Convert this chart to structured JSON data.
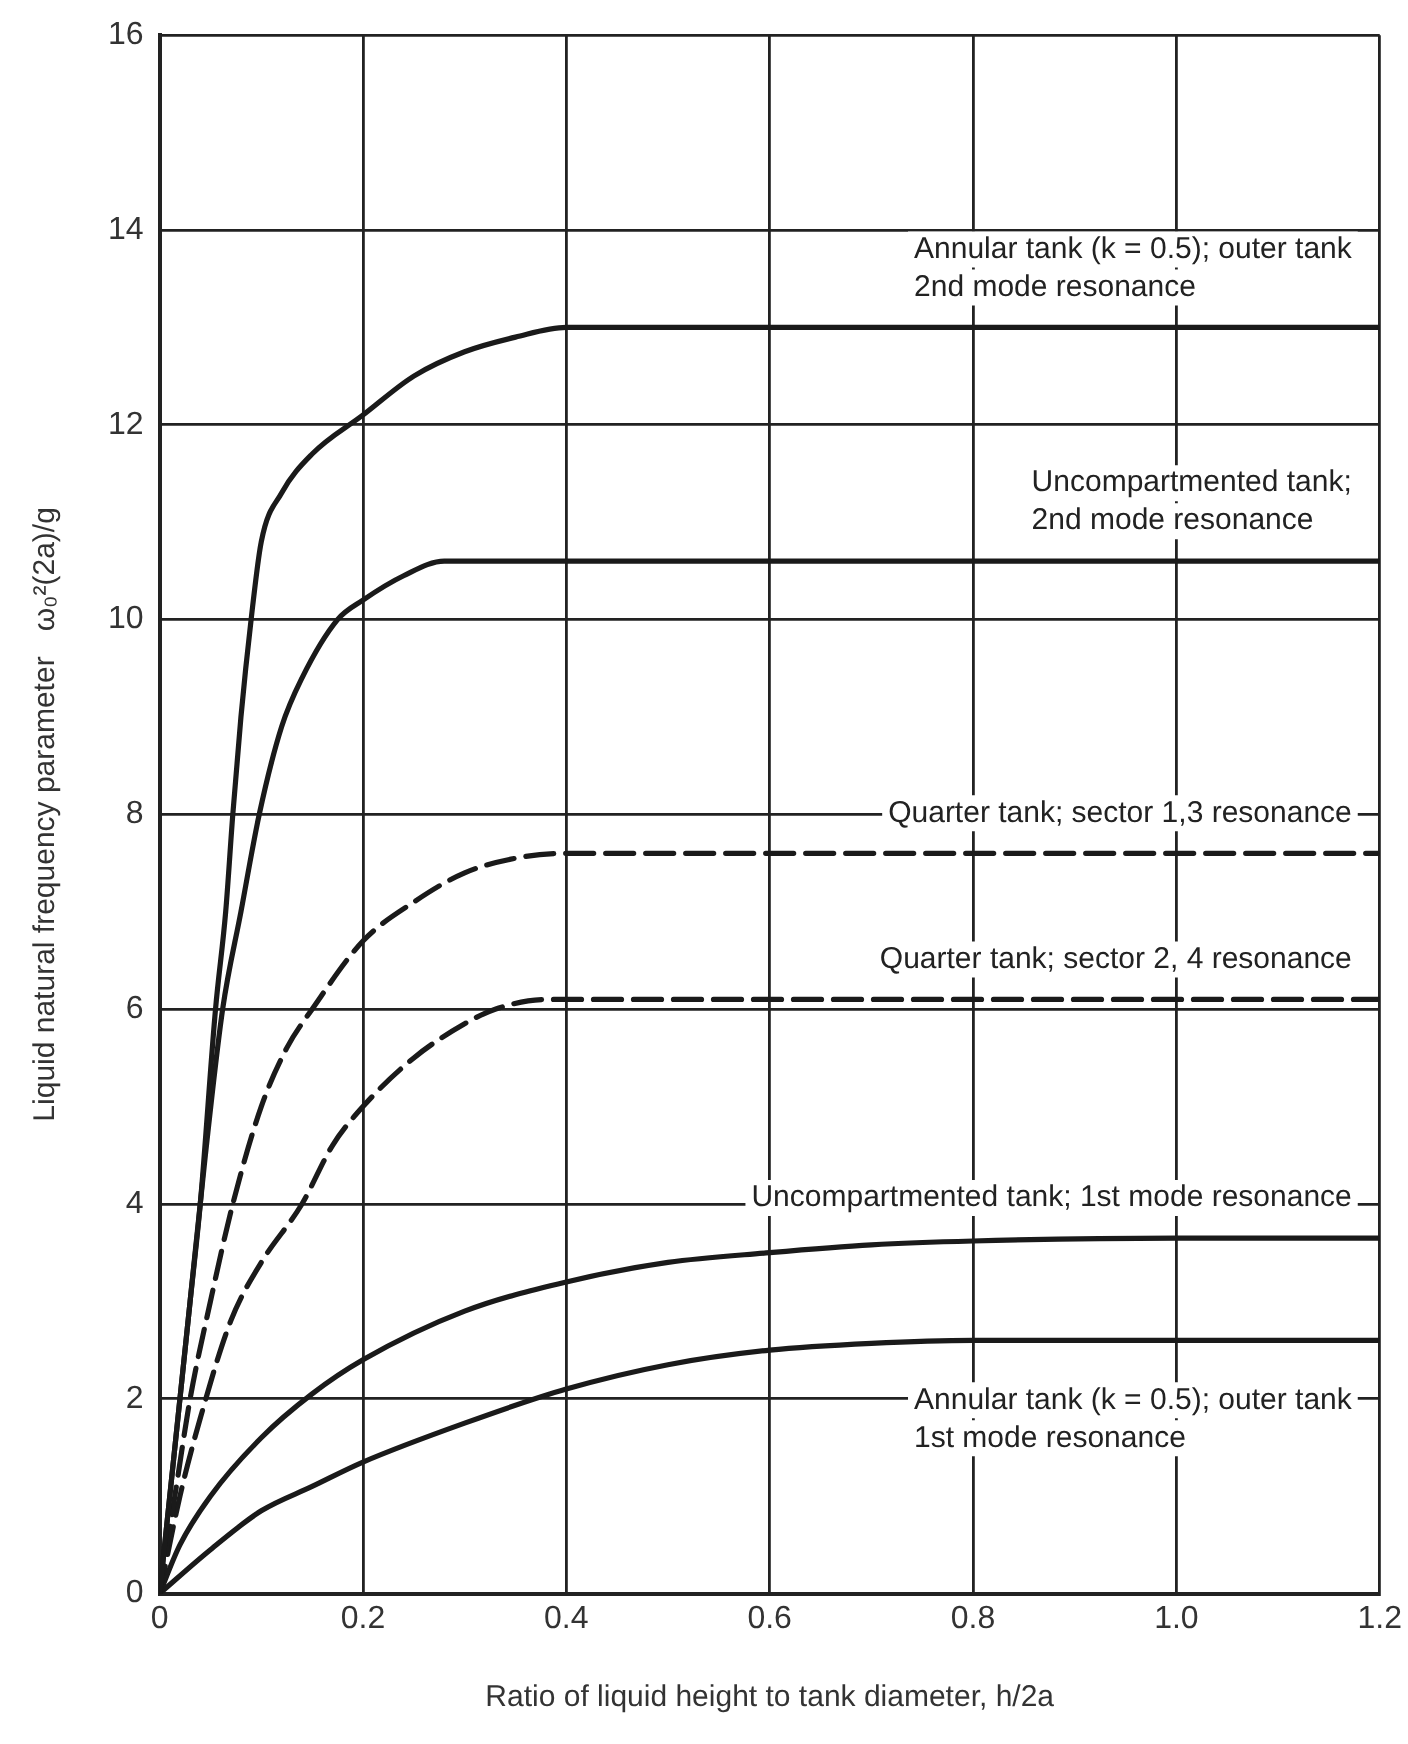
{
  "chart_data": {
    "type": "line",
    "xlabel": "Ratio of liquid height to tank diameter, h/2a",
    "ylabel": "Liquid natural frequency parameter   ω₀²(2a)/g",
    "xlim": [
      0,
      1.2
    ],
    "ylim": [
      0,
      16
    ],
    "xticks": [
      0,
      0.2,
      0.4,
      0.6,
      0.8,
      {
        "value": 1,
        "label": "1.0"
      },
      1.2
    ],
    "yticks": [
      0,
      2,
      4,
      6,
      8,
      10,
      12,
      14,
      16
    ],
    "grid": true,
    "marker": "none",
    "series": [
      {
        "color": "#1a1a1a",
        "line_style": "solid",
        "x": [
          0,
          0.01,
          0.02,
          0.03,
          0.04,
          0.055,
          0.065,
          0.072,
          0.08,
          0.09,
          0.1,
          0.12,
          0.15,
          0.2,
          0.25,
          0.3,
          0.35,
          0.4,
          0.5,
          0.7,
          1.0,
          1.2
        ],
        "values": [
          0,
          1,
          2,
          3,
          4,
          6,
          7,
          8,
          9,
          10,
          10.8,
          11.3,
          11.7,
          12.1,
          12.5,
          12.75,
          12.9,
          13,
          13,
          13,
          13,
          13
        ]
      },
      {
        "color": "#1a1a1a",
        "line_style": "solid",
        "x": [
          0,
          0.015,
          0.03,
          0.045,
          0.062,
          0.08,
          0.098,
          0.12,
          0.14,
          0.175,
          0.2,
          0.24,
          0.28,
          0.4,
          0.7,
          1.0,
          1.2
        ],
        "values": [
          0,
          1.5,
          3,
          4.5,
          6,
          7,
          8,
          8.9,
          9.4,
          10,
          10.2,
          10.45,
          10.6,
          10.6,
          10.6,
          10.6,
          10.6
        ]
      },
      {
        "color": "#1a1a1a",
        "line_style": "dashed",
        "x": [
          0,
          0.015,
          0.03,
          0.05,
          0.072,
          0.1,
          0.125,
          0.15,
          0.2,
          0.25,
          0.3,
          0.35,
          0.4,
          0.6,
          0.8,
          1.0,
          1.2
        ],
        "values": [
          0,
          1,
          2,
          3,
          4,
          5,
          5.6,
          6,
          6.7,
          7.1,
          7.4,
          7.55,
          7.6,
          7.6,
          7.6,
          7.6,
          7.6
        ]
      },
      {
        "color": "#1a1a1a",
        "line_style": "dashed",
        "x": [
          0,
          0.02,
          0.04,
          0.07,
          0.1,
          0.14,
          0.17,
          0.2,
          0.25,
          0.3,
          0.33,
          0.38,
          0.5,
          0.8,
          1.0,
          1.2
        ],
        "values": [
          0,
          1,
          1.8,
          2.8,
          3.4,
          4,
          4.6,
          5,
          5.5,
          5.85,
          6,
          6.1,
          6.1,
          6.1,
          6.1,
          6.1
        ]
      },
      {
        "color": "#1a1a1a",
        "line_style": "solid",
        "x": [
          0,
          0.02,
          0.05,
          0.1,
          0.15,
          0.2,
          0.3,
          0.4,
          0.5,
          0.6,
          0.7,
          0.8,
          1.0,
          1.2
        ],
        "values": [
          0,
          0.5,
          1,
          1.6,
          2.05,
          2.4,
          2.9,
          3.2,
          3.4,
          3.5,
          3.58,
          3.62,
          3.65,
          3.65
        ]
      },
      {
        "color": "#1a1a1a",
        "line_style": "solid",
        "x": [
          0,
          0.05,
          0.1,
          0.15,
          0.2,
          0.3,
          0.4,
          0.5,
          0.6,
          0.7,
          0.8,
          1.0,
          1.2
        ],
        "values": [
          0,
          0.45,
          0.85,
          1.1,
          1.35,
          1.75,
          2.1,
          2.35,
          2.5,
          2.57,
          2.6,
          2.6,
          2.6
        ]
      }
    ],
    "annotations": [
      "Annular tank (k = 0.5); outer tank\n2nd mode resonance",
      "Uncompartmented tank;\n2nd mode resonance",
      "Quarter tank; sector 1,3 resonance",
      "Quarter tank; sector 2, 4 resonance",
      "Uncompartmented tank; 1st mode resonance",
      "Annular tank (k = 0.5); outer tank\n1st mode resonance"
    ]
  }
}
